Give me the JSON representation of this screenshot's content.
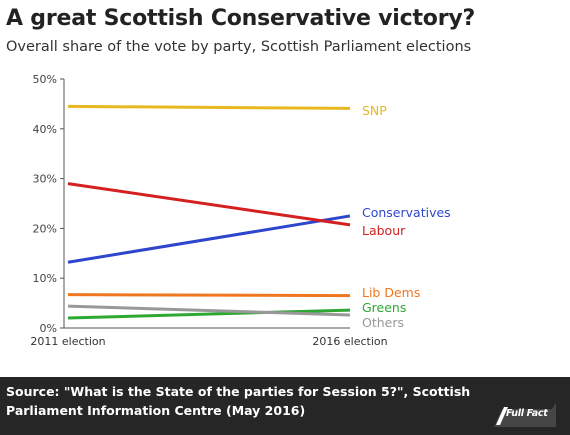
{
  "title": "A great Scottish Conservative victory?",
  "subtitle": "Overall share of the vote by party, Scottish Parliament elections",
  "footer": {
    "source": "Source: \"What is the State of the parties for Session 5?\", Scottish Parliament Information Centre (May 2016)",
    "logo": "Full Fact"
  },
  "chart_data": {
    "type": "line",
    "title": "A great Scottish Conservative victory?",
    "subtitle": "Overall share of the vote by party, Scottish Parliament elections",
    "categories": [
      "2011 election",
      "2016 election"
    ],
    "ylim": [
      0,
      50
    ],
    "yticks": [
      "0%",
      "10%",
      "20%",
      "30%",
      "40%",
      "50%"
    ],
    "grid": false,
    "series": [
      {
        "name": "SNP",
        "values": [
          44.5,
          44.1
        ],
        "color": "#e8b820"
      },
      {
        "name": "Conservatives",
        "values": [
          13.2,
          22.5
        ],
        "color": "#2e46cc"
      },
      {
        "name": "Labour",
        "values": [
          29.0,
          20.7
        ],
        "color": "#d42020"
      },
      {
        "name": "Lib Dems",
        "values": [
          6.7,
          6.5
        ],
        "color": "#ee7720"
      },
      {
        "name": "Greens",
        "values": [
          2.0,
          3.6
        ],
        "color": "#2ea832"
      },
      {
        "name": "Others",
        "values": [
          4.4,
          2.6
        ],
        "color": "#999999"
      }
    ]
  }
}
